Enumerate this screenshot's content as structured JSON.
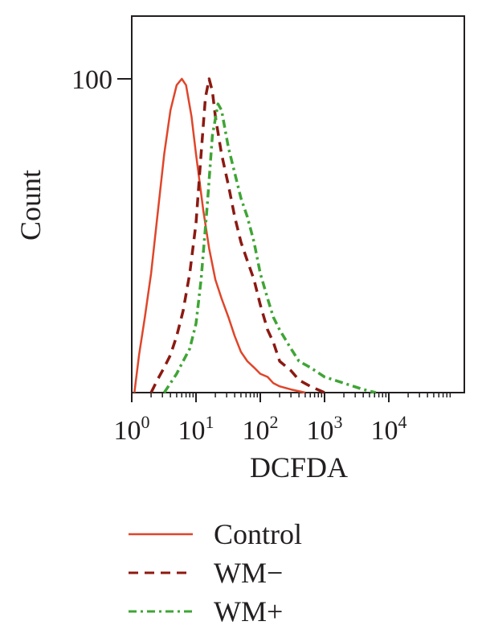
{
  "chart_data": {
    "type": "line",
    "xlabel": "DCFDA",
    "ylabel": "Count",
    "x_scale": "log",
    "xlim": [
      1,
      100000
    ],
    "ylim": [
      0,
      120
    ],
    "x_ticks": [
      {
        "base": "10",
        "exp": "0",
        "value": 1
      },
      {
        "base": "10",
        "exp": "1",
        "value": 10
      },
      {
        "base": "10",
        "exp": "2",
        "value": 100
      },
      {
        "base": "10",
        "exp": "3",
        "value": 1000
      },
      {
        "base": "10",
        "exp": "4",
        "value": 10000
      }
    ],
    "y_ticks": [
      {
        "label": "100",
        "value": 100
      }
    ],
    "grid": false,
    "legend_position": "bottom",
    "series": [
      {
        "name": "Control",
        "color": "#e0452a",
        "style": "solid",
        "points": [
          [
            1.1,
            0
          ],
          [
            1.3,
            12
          ],
          [
            1.6,
            24
          ],
          [
            2.0,
            38
          ],
          [
            2.5,
            56
          ],
          [
            3.2,
            76
          ],
          [
            4.0,
            90
          ],
          [
            5.0,
            98
          ],
          [
            6.0,
            100
          ],
          [
            7.0,
            98
          ],
          [
            8.5,
            88
          ],
          [
            10,
            76
          ],
          [
            13,
            58
          ],
          [
            16,
            46
          ],
          [
            20,
            36
          ],
          [
            25,
            30
          ],
          [
            32,
            24
          ],
          [
            40,
            18
          ],
          [
            50,
            13
          ],
          [
            63,
            10
          ],
          [
            80,
            8
          ],
          [
            100,
            6
          ],
          [
            130,
            5
          ],
          [
            160,
            3
          ],
          [
            200,
            2
          ],
          [
            300,
            1
          ],
          [
            500,
            0
          ]
        ]
      },
      {
        "name": "WM−",
        "color": "#8b1a12",
        "style": "dashed",
        "points": [
          [
            2.0,
            0
          ],
          [
            2.5,
            4
          ],
          [
            3.2,
            8
          ],
          [
            4.0,
            12
          ],
          [
            5.0,
            18
          ],
          [
            6.3,
            26
          ],
          [
            8.0,
            38
          ],
          [
            10,
            54
          ],
          [
            12,
            76
          ],
          [
            14,
            94
          ],
          [
            16,
            100
          ],
          [
            18,
            96
          ],
          [
            20,
            88
          ],
          [
            25,
            76
          ],
          [
            32,
            66
          ],
          [
            40,
            56
          ],
          [
            50,
            48
          ],
          [
            63,
            42
          ],
          [
            80,
            36
          ],
          [
            100,
            28
          ],
          [
            130,
            20
          ],
          [
            160,
            16
          ],
          [
            200,
            10
          ],
          [
            300,
            7
          ],
          [
            400,
            4
          ],
          [
            600,
            2
          ],
          [
            1000,
            0
          ]
        ]
      },
      {
        "name": "WM+",
        "color": "#3fa535",
        "style": "dashdot",
        "points": [
          [
            3.2,
            0
          ],
          [
            4.0,
            3
          ],
          [
            5.0,
            6
          ],
          [
            6.3,
            10
          ],
          [
            8.0,
            14
          ],
          [
            10,
            22
          ],
          [
            12,
            36
          ],
          [
            15,
            60
          ],
          [
            18,
            82
          ],
          [
            22,
            92
          ],
          [
            25,
            90
          ],
          [
            32,
            78
          ],
          [
            40,
            70
          ],
          [
            50,
            62
          ],
          [
            63,
            56
          ],
          [
            80,
            48
          ],
          [
            100,
            38
          ],
          [
            130,
            30
          ],
          [
            160,
            24
          ],
          [
            200,
            20
          ],
          [
            300,
            14
          ],
          [
            400,
            10
          ],
          [
            600,
            8
          ],
          [
            1000,
            5
          ],
          [
            2000,
            3
          ],
          [
            4000,
            1
          ],
          [
            6300,
            0
          ]
        ]
      }
    ]
  }
}
